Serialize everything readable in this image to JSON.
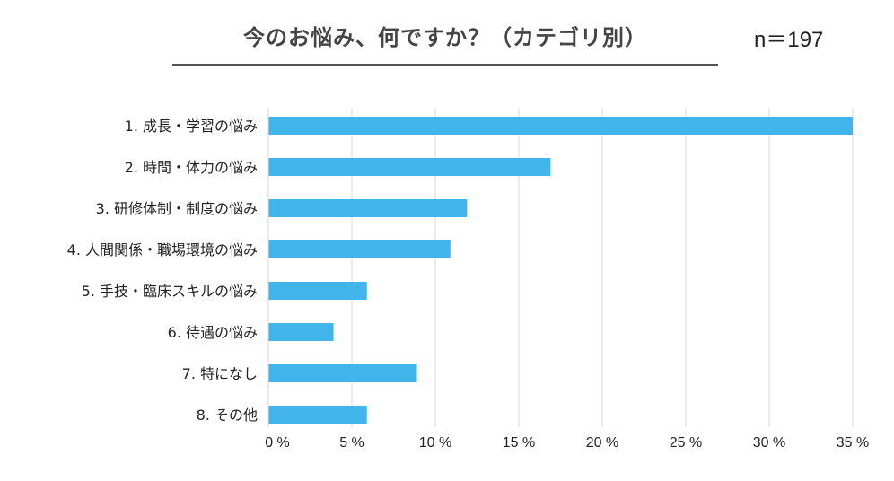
{
  "chart_data": {
    "type": "bar",
    "orientation": "horizontal",
    "title": "今のお悩み、何ですか？（カテゴリ別）",
    "annotation": "n＝197",
    "categories": [
      "1. 成長・学習の悩み",
      "2. 時間・体力の悩み",
      "3. 研修体制・制度の悩み",
      "4. 人間関係・職場環境の悩み",
      "5. 手技・臨床スキルの悩み",
      "6. 待遇の悩み",
      "7. 特になし",
      "8. その他"
    ],
    "values": [
      35.0,
      16.9,
      11.9,
      10.9,
      5.9,
      3.9,
      8.9,
      5.9
    ],
    "xlim": [
      0,
      35
    ],
    "xticks": [
      0,
      5,
      10,
      15,
      20,
      25,
      30,
      35
    ],
    "xtick_labels": [
      "0 %",
      "5 %",
      "10 %",
      "15 %",
      "20 %",
      "25 %",
      "30 %",
      "35 %"
    ],
    "xlabel": "",
    "ylabel": "",
    "grid": "vertical",
    "colors": {
      "bar": "#41b4ec",
      "grid": "#d9d9d9"
    }
  }
}
